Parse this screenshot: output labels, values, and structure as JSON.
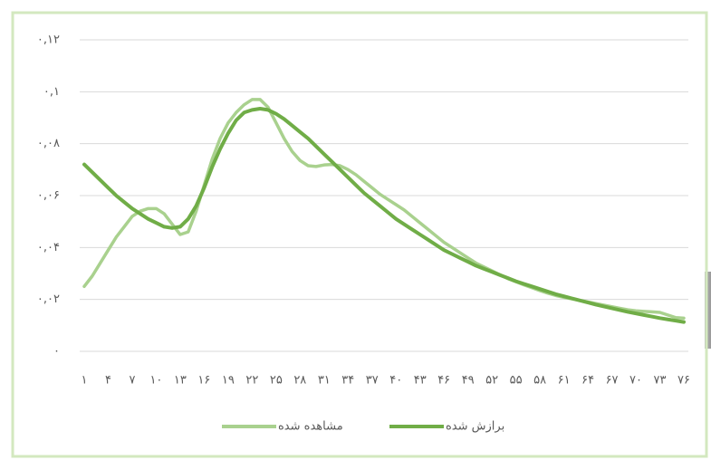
{
  "chart_data": {
    "type": "line",
    "categories": [
      "۱",
      null,
      null,
      "۴",
      null,
      null,
      "۷",
      null,
      null,
      "۱۰",
      null,
      null,
      "۱۳",
      null,
      null,
      "۱۶",
      null,
      null,
      "۱۹",
      null,
      null,
      "۲۲",
      null,
      null,
      "۲۵",
      null,
      null,
      "۲۸",
      null,
      null,
      "۳۱",
      null,
      null,
      "۳۴",
      null,
      null,
      "۳۷",
      null,
      null,
      "۴۰",
      null,
      null,
      "۴۳",
      null,
      null,
      "۴۶",
      null,
      null,
      "۴۹",
      null,
      null,
      "۵۲",
      null,
      null,
      "۵۵",
      null,
      null,
      "۵۸",
      null,
      null,
      "۶۱",
      null,
      null,
      "۶۴",
      null,
      null,
      "۶۷",
      null,
      null,
      "۷۰",
      null,
      null,
      "۷۳",
      null,
      null,
      "۷۶"
    ],
    "series": [
      {
        "name": "مشاهده شده",
        "color": "#a9d18e",
        "values": [
          0.025,
          0.029,
          0.034,
          0.039,
          0.044,
          0.048,
          0.052,
          0.054,
          0.055,
          0.055,
          0.053,
          0.049,
          0.045,
          0.046,
          0.054,
          0.064,
          0.074,
          0.082,
          0.088,
          0.092,
          0.095,
          0.097,
          0.097,
          0.094,
          0.088,
          0.082,
          0.077,
          0.0735,
          0.0715,
          0.0712,
          0.0718,
          0.072,
          0.0715,
          0.07,
          0.068,
          0.0655,
          0.063,
          0.0605,
          0.0585,
          0.0565,
          0.0545,
          0.052,
          0.0495,
          0.047,
          0.0445,
          0.042,
          0.04,
          0.038,
          0.036,
          0.034,
          0.0325,
          0.031,
          0.0295,
          0.028,
          0.0268,
          0.0256,
          0.0245,
          0.0234,
          0.0224,
          0.0215,
          0.0208,
          0.0202,
          0.0196,
          0.019,
          0.0184,
          0.0178,
          0.0172,
          0.0166,
          0.016,
          0.0156,
          0.0154,
          0.0152,
          0.015,
          0.014,
          0.013,
          0.0128
        ]
      },
      {
        "name": "برازش شده",
        "color": "#70ad47",
        "values": [
          0.072,
          0.069,
          0.066,
          0.063,
          0.06,
          0.0575,
          0.055,
          0.053,
          0.051,
          0.0495,
          0.048,
          0.0475,
          0.048,
          0.051,
          0.056,
          0.063,
          0.071,
          0.078,
          0.084,
          0.089,
          0.092,
          0.093,
          0.0935,
          0.093,
          0.0915,
          0.0895,
          0.087,
          0.0845,
          0.082,
          0.079,
          0.076,
          0.073,
          0.07,
          0.067,
          0.064,
          0.061,
          0.0585,
          0.056,
          0.0535,
          0.051,
          0.049,
          0.047,
          0.045,
          0.043,
          0.041,
          0.039,
          0.0375,
          0.036,
          0.0345,
          0.033,
          0.0318,
          0.0306,
          0.0294,
          0.0282,
          0.027,
          0.026,
          0.025,
          0.024,
          0.023,
          0.022,
          0.0212,
          0.0204,
          0.0196,
          0.0188,
          0.018,
          0.0173,
          0.0166,
          0.0159,
          0.0152,
          0.0146,
          0.014,
          0.0134,
          0.0128,
          0.0123,
          0.0118,
          0.0113
        ]
      }
    ],
    "ylim": [
      0,
      0.12
    ],
    "yticks": [
      {
        "value": 0,
        "label": "۰"
      },
      {
        "value": 0.02,
        "label": "۰,۰۲"
      },
      {
        "value": 0.04,
        "label": "۰,۰۴"
      },
      {
        "value": 0.06,
        "label": "۰,۰۶"
      },
      {
        "value": 0.08,
        "label": "۰,۰۸"
      },
      {
        "value": 0.1,
        "label": "۰,۱"
      },
      {
        "value": 0.12,
        "label": "۰,۱۲"
      }
    ],
    "grid": true,
    "legend": "bottom"
  }
}
